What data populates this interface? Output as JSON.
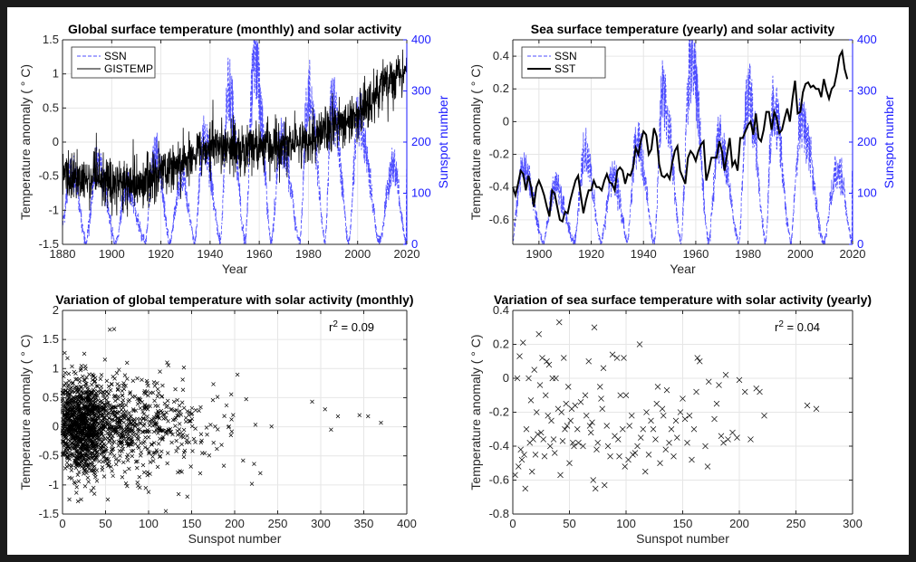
{
  "chart_data": [
    {
      "id": "p1",
      "type": "line",
      "title": "Global surface temperature (monthly) and solar activity",
      "xlabel": "Year",
      "ylabel": "Temperature anomaly ( ° C)",
      "ylabel_right": "Sunspot number",
      "xlim": [
        1880,
        2020
      ],
      "ylim": [
        -1.5,
        1.5
      ],
      "ylim_right": [
        0,
        400
      ],
      "xticks": [
        "1880",
        "1900",
        "1920",
        "1940",
        "1960",
        "1980",
        "2000",
        "2020"
      ],
      "yticks": [
        "-1.5",
        "-1",
        "-0.5",
        "0",
        "0.5",
        "1",
        "1.5"
      ],
      "yticks_right": [
        "0",
        "100",
        "200",
        "300",
        "400"
      ],
      "legend": [
        "SSN",
        "GISTEMP"
      ],
      "legend_position": "top-left",
      "series": [
        {
          "name": "SSN",
          "axis": "right",
          "style": "dashed",
          "color": "#3a3aff",
          "cycle_min": [
            1889.6,
            1901.7,
            1913.6,
            1923.6,
            1933.8,
            1944.2,
            1954.3,
            1964.9,
            1976.5,
            1986.8,
            1996.4,
            2008.9,
            2019.8
          ],
          "cycle_max": [
            1883.9,
            1894.1,
            1906.2,
            1917.6,
            1928.4,
            1937.4,
            1947.5,
            1958.2,
            1968.9,
            1979.9,
            1989.6,
            2000.3,
            2014.3
          ],
          "cycle_peak": [
            140,
            150,
            110,
            180,
            130,
            200,
            290,
            360,
            200,
            290,
            270,
            240,
            150
          ]
        },
        {
          "name": "GISTEMP",
          "axis": "left",
          "style": "solid",
          "color": "#000000",
          "trend_years": [
            1880,
            1910,
            1940,
            1950,
            1975,
            2000,
            2016,
            2020
          ],
          "trend_values": [
            -0.5,
            -0.65,
            -0.05,
            -0.1,
            -0.05,
            0.4,
            1.0,
            1.1
          ]
        }
      ]
    },
    {
      "id": "p2",
      "type": "line",
      "title": "Sea surface temperature (yearly) and solar activity",
      "xlabel": "Year",
      "ylabel": "Temperature anomaly ( ° C)",
      "ylabel_right": "Sunspot number",
      "xlim": [
        1890,
        2020
      ],
      "ylim": [
        -0.75,
        0.5
      ],
      "ylim_right": [
        0,
        400
      ],
      "xticks": [
        "1900",
        "1920",
        "1940",
        "1960",
        "1980",
        "2000",
        "2020"
      ],
      "yticks": [
        "-0.6",
        "-0.4",
        "-0.2",
        "0",
        "0.2",
        "0.4"
      ],
      "yticks_right": [
        "0",
        "100",
        "200",
        "300",
        "400"
      ],
      "legend": [
        "SSN",
        "SST"
      ],
      "legend_position": "top-left",
      "series": [
        {
          "name": "SSN",
          "axis": "right",
          "style": "dashed",
          "color": "#3a3aff"
        },
        {
          "name": "SST",
          "axis": "left",
          "style": "solid",
          "color": "#000000",
          "years": [
            1890,
            1891,
            1892,
            1893,
            1894,
            1895,
            1896,
            1897,
            1898,
            1899,
            1900,
            1901,
            1902,
            1903,
            1904,
            1905,
            1906,
            1907,
            1908,
            1909,
            1910,
            1911,
            1912,
            1913,
            1914,
            1915,
            1916,
            1917,
            1918,
            1919,
            1920,
            1921,
            1922,
            1923,
            1924,
            1925,
            1926,
            1927,
            1928,
            1929,
            1930,
            1931,
            1932,
            1933,
            1934,
            1935,
            1936,
            1937,
            1938,
            1939,
            1940,
            1941,
            1942,
            1943,
            1944,
            1945,
            1946,
            1947,
            1948,
            1949,
            1950,
            1951,
            1952,
            1953,
            1954,
            1955,
            1956,
            1957,
            1958,
            1959,
            1960,
            1961,
            1962,
            1963,
            1964,
            1965,
            1966,
            1967,
            1968,
            1969,
            1970,
            1971,
            1972,
            1973,
            1974,
            1975,
            1976,
            1977,
            1978,
            1979,
            1980,
            1981,
            1982,
            1983,
            1984,
            1985,
            1986,
            1987,
            1988,
            1989,
            1990,
            1991,
            1992,
            1993,
            1994,
            1995,
            1996,
            1997,
            1998,
            1999,
            2000,
            2001,
            2002,
            2003,
            2004,
            2005,
            2006,
            2007,
            2008,
            2009,
            2010,
            2011,
            2012,
            2013,
            2014,
            2015,
            2016,
            2017,
            2018
          ],
          "values": [
            -0.4,
            -0.45,
            -0.38,
            -0.3,
            -0.32,
            -0.42,
            -0.33,
            -0.4,
            -0.52,
            -0.4,
            -0.36,
            -0.4,
            -0.45,
            -0.52,
            -0.58,
            -0.42,
            -0.44,
            -0.52,
            -0.6,
            -0.61,
            -0.55,
            -0.56,
            -0.48,
            -0.42,
            -0.36,
            -0.33,
            -0.45,
            -0.56,
            -0.48,
            -0.42,
            -0.42,
            -0.36,
            -0.4,
            -0.4,
            -0.42,
            -0.36,
            -0.32,
            -0.37,
            -0.38,
            -0.42,
            -0.3,
            -0.28,
            -0.3,
            -0.38,
            -0.32,
            -0.33,
            -0.28,
            -0.16,
            -0.2,
            -0.12,
            -0.06,
            -0.08,
            -0.2,
            -0.17,
            -0.04,
            -0.09,
            -0.26,
            -0.33,
            -0.34,
            -0.32,
            -0.35,
            -0.25,
            -0.18,
            -0.15,
            -0.3,
            -0.34,
            -0.38,
            -0.22,
            -0.18,
            -0.2,
            -0.24,
            -0.18,
            -0.14,
            -0.12,
            -0.36,
            -0.3,
            -0.22,
            -0.22,
            -0.22,
            -0.12,
            -0.18,
            -0.3,
            -0.2,
            -0.1,
            -0.27,
            -0.24,
            -0.3,
            -0.1,
            -0.1,
            -0.06,
            -0.02,
            0.0,
            -0.08,
            0.05,
            -0.1,
            -0.12,
            -0.05,
            0.06,
            0.06,
            -0.05,
            0.06,
            0.02,
            -0.07,
            -0.05,
            0.02,
            0.08,
            0.0,
            0.14,
            0.25,
            0.05,
            0.06,
            0.18,
            0.23,
            0.24,
            0.21,
            0.22,
            0.2,
            0.2,
            0.15,
            0.26,
            0.19,
            0.14,
            0.2,
            0.22,
            0.3,
            0.4,
            0.43,
            0.32,
            0.26
          ]
        }
      ]
    },
    {
      "id": "p3",
      "type": "scatter",
      "title": "Variation of global temperature with solar activity (monthly)",
      "xlabel": "Sunspot number",
      "ylabel": "Temperature anomaly ( ° C)",
      "xlim": [
        0,
        400
      ],
      "ylim": [
        -1.5,
        2
      ],
      "xticks": [
        "0",
        "50",
        "100",
        "150",
        "200",
        "250",
        "300",
        "350",
        "400"
      ],
      "yticks": [
        "-1.5",
        "-1",
        "-0.5",
        "0",
        "0.5",
        "1",
        "1.5",
        "2"
      ],
      "annotation": {
        "base": "r",
        "sup": "2",
        "rest": " = 0.09"
      },
      "marker": "x",
      "n_points": 1656,
      "outliers": [
        [
          18,
          -1.28
        ],
        [
          40,
          -0.93
        ],
        [
          55,
          1.67
        ],
        [
          60,
          1.68
        ],
        [
          75,
          1.1
        ],
        [
          100,
          -1.12
        ],
        [
          120,
          -1.45
        ],
        [
          145,
          -1.2
        ],
        [
          160,
          -0.8
        ],
        [
          220,
          -0.98
        ],
        [
          290,
          0.43
        ],
        [
          305,
          0.3
        ],
        [
          312,
          -0.05
        ],
        [
          320,
          0.18
        ],
        [
          345,
          0.2
        ],
        [
          355,
          0.18
        ],
        [
          370,
          0.07
        ]
      ]
    },
    {
      "id": "p4",
      "type": "scatter",
      "title": "Variation of sea surface temperature with solar activity (yearly)",
      "xlabel": "Sunspot number",
      "ylabel": "Temperature anomaly ( ° C)",
      "xlim": [
        0,
        300
      ],
      "ylim": [
        -0.8,
        0.4
      ],
      "xticks": [
        "0",
        "50",
        "100",
        "150",
        "200",
        "250",
        "300"
      ],
      "yticks": [
        "-0.8",
        "-0.6",
        "-0.4",
        "-0.2",
        "0",
        "0.2",
        "0.4"
      ],
      "annotation": {
        "base": "r",
        "sup": "2",
        "rest": " = 0.04"
      },
      "marker": "x",
      "points": [
        [
          2,
          -0.57
        ],
        [
          4,
          0.0
        ],
        [
          5,
          -0.52
        ],
        [
          6,
          0.13
        ],
        [
          7,
          -0.42
        ],
        [
          8,
          -0.48
        ],
        [
          9,
          0.21
        ],
        [
          10,
          -0.45
        ],
        [
          11,
          -0.65
        ],
        [
          12,
          -0.3
        ],
        [
          14,
          0.0
        ],
        [
          15,
          -0.38
        ],
        [
          16,
          -0.13
        ],
        [
          17,
          -0.55
        ],
        [
          18,
          -0.36
        ],
        [
          19,
          0.05
        ],
        [
          20,
          -0.45
        ],
        [
          21,
          -0.2
        ],
        [
          22,
          -0.33
        ],
        [
          23,
          0.26
        ],
        [
          24,
          -0.04
        ],
        [
          25,
          -0.32
        ],
        [
          26,
          0.12
        ],
        [
          27,
          -0.36
        ],
        [
          28,
          -0.46
        ],
        [
          29,
          -0.1
        ],
        [
          30,
          0.1
        ],
        [
          31,
          -0.22
        ],
        [
          32,
          0.08
        ],
        [
          33,
          -0.4
        ],
        [
          34,
          -0.25
        ],
        [
          35,
          0.0
        ],
        [
          36,
          -0.36
        ],
        [
          37,
          -0.44
        ],
        [
          38,
          0.0
        ],
        [
          40,
          -0.18
        ],
        [
          41,
          0.33
        ],
        [
          42,
          -0.57
        ],
        [
          43,
          -0.2
        ],
        [
          44,
          -0.37
        ],
        [
          45,
          0.12
        ],
        [
          46,
          -0.3
        ],
        [
          47,
          -0.15
        ],
        [
          48,
          -0.28
        ],
        [
          49,
          -0.05
        ],
        [
          50,
          -0.5
        ],
        [
          51,
          -0.25
        ],
        [
          52,
          -0.18
        ],
        [
          53,
          -0.38
        ],
        [
          54,
          -0.4
        ],
        [
          55,
          -0.16
        ],
        [
          57,
          -0.3
        ],
        [
          58,
          -0.38
        ],
        [
          60,
          -0.14
        ],
        [
          62,
          -0.4
        ],
        [
          64,
          -0.1
        ],
        [
          65,
          -0.22
        ],
        [
          67,
          0.1
        ],
        [
          68,
          -0.28
        ],
        [
          69,
          -0.32
        ],
        [
          70,
          -0.26
        ],
        [
          71,
          -0.6
        ],
        [
          72,
          0.3
        ],
        [
          73,
          -0.65
        ],
        [
          74,
          -0.42
        ],
        [
          75,
          -0.38
        ],
        [
          77,
          -0.05
        ],
        [
          78,
          -0.12
        ],
        [
          79,
          -0.18
        ],
        [
          80,
          0.06
        ],
        [
          81,
          -0.63
        ],
        [
          83,
          -0.28
        ],
        [
          84,
          -0.4
        ],
        [
          86,
          -0.46
        ],
        [
          88,
          0.14
        ],
        [
          90,
          -0.34
        ],
        [
          92,
          0.12
        ],
        [
          93,
          -0.36
        ],
        [
          94,
          -0.46
        ],
        [
          95,
          -0.1
        ],
        [
          97,
          -0.3
        ],
        [
          98,
          0.12
        ],
        [
          99,
          -0.52
        ],
        [
          100,
          -0.1
        ],
        [
          102,
          -0.48
        ],
        [
          103,
          -0.28
        ],
        [
          105,
          -0.22
        ],
        [
          106,
          -0.45
        ],
        [
          108,
          -0.44
        ],
        [
          110,
          -0.4
        ],
        [
          112,
          0.2
        ],
        [
          113,
          -0.35
        ],
        [
          115,
          -0.3
        ],
        [
          117,
          -0.55
        ],
        [
          118,
          -0.2
        ],
        [
          120,
          -0.45
        ],
        [
          122,
          -0.25
        ],
        [
          124,
          -0.3
        ],
        [
          126,
          -0.36
        ],
        [
          127,
          -0.15
        ],
        [
          128,
          -0.05
        ],
        [
          130,
          -0.5
        ],
        [
          132,
          -0.18
        ],
        [
          133,
          -0.22
        ],
        [
          135,
          -0.42
        ],
        [
          136,
          -0.07
        ],
        [
          138,
          -0.38
        ],
        [
          140,
          -0.3
        ],
        [
          142,
          -0.46
        ],
        [
          144,
          -0.25
        ],
        [
          145,
          -0.35
        ],
        [
          148,
          -0.2
        ],
        [
          150,
          -0.12
        ],
        [
          152,
          -0.24
        ],
        [
          154,
          -0.38
        ],
        [
          156,
          -0.22
        ],
        [
          158,
          -0.48
        ],
        [
          160,
          -0.3
        ],
        [
          162,
          -0.08
        ],
        [
          163,
          0.12
        ],
        [
          165,
          0.1
        ],
        [
          170,
          -0.4
        ],
        [
          172,
          -0.52
        ],
        [
          173,
          -0.02
        ],
        [
          178,
          -0.24
        ],
        [
          180,
          -0.15
        ],
        [
          182,
          -0.04
        ],
        [
          184,
          -0.34
        ],
        [
          186,
          -0.38
        ],
        [
          188,
          0.02
        ],
        [
          190,
          -0.36
        ],
        [
          194,
          -0.32
        ],
        [
          198,
          -0.35
        ],
        [
          200,
          -0.01
        ],
        [
          205,
          -0.08
        ],
        [
          210,
          -0.36
        ],
        [
          215,
          -0.06
        ],
        [
          218,
          -0.08
        ],
        [
          222,
          -0.22
        ],
        [
          260,
          -0.16
        ],
        [
          268,
          -0.18
        ]
      ]
    }
  ]
}
